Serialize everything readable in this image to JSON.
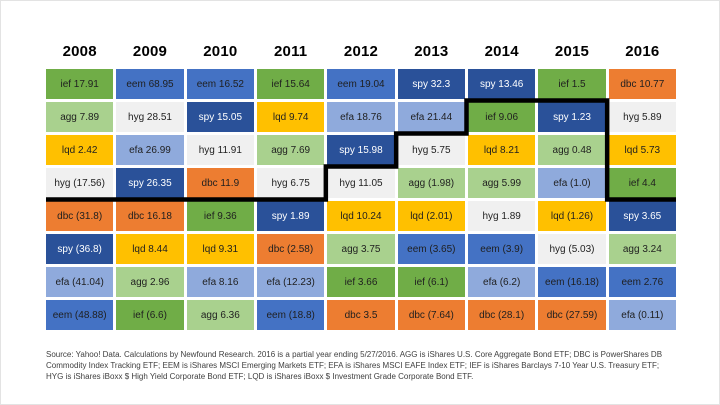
{
  "footnote": {
    "text": "Source: Yahoo! Data. Calculations by Newfound Research.  2016 is a partial year ending 5/27/2016.  AGG is iShares U.S. Core Aggregate Bond ETF; DBC is PowerShares DB Commodity Index Tracking ETF; EEM is iShares MSCI Emerging Markets ETF; EFA is iShares MSCI EAFE Index ETF; IEF is iShares Barclays 7-10 Year U.S. Treasury ETF; HYG is iShares iBoxx $ High Yield Corporate Bond ETF; LQD is iShares iBoxx $ Investment Grade Corporate Bond ETF."
  },
  "chart_data": {
    "type": "table",
    "subtype": "periodic-table-of-returns-heatmap",
    "years": [
      "2008",
      "2009",
      "2010",
      "2011",
      "2012",
      "2013",
      "2014",
      "2015",
      "2016"
    ],
    "ticker_colors": {
      "spy": "#2a5199",
      "eem": "#4472c4",
      "efa": "#8faadc",
      "ief": "#70ad47",
      "agg": "#a9d18e",
      "lqd": "#ffc000",
      "hyg": "#f0f0f0",
      "dbc": "#ed7d31"
    },
    "ticker_text_colors": {
      "spy": "#ffffff"
    },
    "default_text_color": "#1f1f1f",
    "overlay_line": {
      "color": "#000000",
      "width": 4.5,
      "comment": "step line: below row boundary N after given column count",
      "steps": [
        {
          "row_boundary": 4,
          "through_col": 4
        },
        {
          "row_boundary": 3,
          "through_col": 5
        },
        {
          "row_boundary": 2,
          "through_col": 6
        },
        {
          "row_boundary": 1,
          "through_col": 8
        },
        {
          "row_boundary": 4,
          "through_col": 9
        }
      ]
    },
    "columns": [
      {
        "year": "2008",
        "ranked": [
          {
            "ticker": "ief",
            "text": "ief 17.91",
            "value": 17.91
          },
          {
            "ticker": "agg",
            "text": "agg 7.89",
            "value": 7.89
          },
          {
            "ticker": "lqd",
            "text": "lqd 2.42",
            "value": 2.42
          },
          {
            "ticker": "hyg",
            "text": "hyg (17.56)",
            "value": -17.56
          },
          {
            "ticker": "dbc",
            "text": "dbc (31.8)",
            "value": -31.8
          },
          {
            "ticker": "spy",
            "text": "spy (36.8)",
            "value": -36.8
          },
          {
            "ticker": "efa",
            "text": "efa (41.04)",
            "value": -41.04
          },
          {
            "ticker": "eem",
            "text": "eem (48.88)",
            "value": -48.88
          }
        ]
      },
      {
        "year": "2009",
        "ranked": [
          {
            "ticker": "eem",
            "text": "eem 68.95",
            "value": 68.95
          },
          {
            "ticker": "hyg",
            "text": "hyg 28.51",
            "value": 28.51
          },
          {
            "ticker": "efa",
            "text": "efa 26.99",
            "value": 26.99
          },
          {
            "ticker": "spy",
            "text": "spy 26.35",
            "value": 26.35
          },
          {
            "ticker": "dbc",
            "text": "dbc 16.18",
            "value": 16.18
          },
          {
            "ticker": "lqd",
            "text": "lqd 8.44",
            "value": 8.44
          },
          {
            "ticker": "agg",
            "text": "agg 2.96",
            "value": 2.96
          },
          {
            "ticker": "ief",
            "text": "ief (6.6)",
            "value": -6.6
          }
        ]
      },
      {
        "year": "2010",
        "ranked": [
          {
            "ticker": "eem",
            "text": "eem 16.52",
            "value": 16.52
          },
          {
            "ticker": "spy",
            "text": "spy 15.05",
            "value": 15.05
          },
          {
            "ticker": "hyg",
            "text": "hyg 11.91",
            "value": 11.91
          },
          {
            "ticker": "dbc",
            "text": "dbc 11.9",
            "value": 11.9
          },
          {
            "ticker": "ief",
            "text": "ief 9.36",
            "value": 9.36
          },
          {
            "ticker": "lqd",
            "text": "lqd 9.31",
            "value": 9.31
          },
          {
            "ticker": "efa",
            "text": "efa 8.16",
            "value": 8.16
          },
          {
            "ticker": "agg",
            "text": "agg 6.36",
            "value": 6.36
          }
        ]
      },
      {
        "year": "2011",
        "ranked": [
          {
            "ticker": "ief",
            "text": "ief 15.64",
            "value": 15.64
          },
          {
            "ticker": "lqd",
            "text": "lqd 9.74",
            "value": 9.74
          },
          {
            "ticker": "agg",
            "text": "agg 7.69",
            "value": 7.69
          },
          {
            "ticker": "hyg",
            "text": "hyg 6.75",
            "value": 6.75
          },
          {
            "ticker": "spy",
            "text": "spy 1.89",
            "value": 1.89
          },
          {
            "ticker": "dbc",
            "text": "dbc (2.58)",
            "value": -2.58
          },
          {
            "ticker": "efa",
            "text": "efa (12.23)",
            "value": -12.23
          },
          {
            "ticker": "eem",
            "text": "eem (18.8)",
            "value": -18.8
          }
        ]
      },
      {
        "year": "2012",
        "ranked": [
          {
            "ticker": "eem",
            "text": "eem 19.04",
            "value": 19.04
          },
          {
            "ticker": "efa",
            "text": "efa 18.76",
            "value": 18.76
          },
          {
            "ticker": "spy",
            "text": "spy 15.98",
            "value": 15.98
          },
          {
            "ticker": "hyg",
            "text": "hyg 11.05",
            "value": 11.05
          },
          {
            "ticker": "lqd",
            "text": "lqd 10.24",
            "value": 10.24
          },
          {
            "ticker": "agg",
            "text": "agg 3.75",
            "value": 3.75
          },
          {
            "ticker": "ief",
            "text": "ief 3.66",
            "value": 3.66
          },
          {
            "ticker": "dbc",
            "text": "dbc 3.5",
            "value": 3.5
          }
        ]
      },
      {
        "year": "2013",
        "ranked": [
          {
            "ticker": "spy",
            "text": "spy 32.3",
            "value": 32.3
          },
          {
            "ticker": "efa",
            "text": "efa 21.44",
            "value": 21.44
          },
          {
            "ticker": "hyg",
            "text": "hyg 5.75",
            "value": 5.75
          },
          {
            "ticker": "agg",
            "text": "agg (1.98)",
            "value": -1.98
          },
          {
            "ticker": "lqd",
            "text": "lqd (2.01)",
            "value": -2.01
          },
          {
            "ticker": "eem",
            "text": "eem (3.65)",
            "value": -3.65
          },
          {
            "ticker": "ief",
            "text": "ief (6.1)",
            "value": -6.1
          },
          {
            "ticker": "dbc",
            "text": "dbc (7.64)",
            "value": -7.64
          }
        ]
      },
      {
        "year": "2014",
        "ranked": [
          {
            "ticker": "spy",
            "text": "spy 13.46",
            "value": 13.46
          },
          {
            "ticker": "ief",
            "text": "ief 9.06",
            "value": 9.06
          },
          {
            "ticker": "lqd",
            "text": "lqd 8.21",
            "value": 8.21
          },
          {
            "ticker": "agg",
            "text": "agg 5.99",
            "value": 5.99
          },
          {
            "ticker": "hyg",
            "text": "hyg 1.89",
            "value": 1.89
          },
          {
            "ticker": "eem",
            "text": "eem (3.9)",
            "value": -3.9
          },
          {
            "ticker": "efa",
            "text": "efa (6.2)",
            "value": -6.2
          },
          {
            "ticker": "dbc",
            "text": "dbc (28.1)",
            "value": -28.1
          }
        ]
      },
      {
        "year": "2015",
        "ranked": [
          {
            "ticker": "ief",
            "text": "ief 1.5",
            "value": 1.5
          },
          {
            "ticker": "spy",
            "text": "spy 1.23",
            "value": 1.23
          },
          {
            "ticker": "agg",
            "text": "agg 0.48",
            "value": 0.48
          },
          {
            "ticker": "efa",
            "text": "efa (1.0)",
            "value": -1.0
          },
          {
            "ticker": "lqd",
            "text": "lqd (1.26)",
            "value": -1.26
          },
          {
            "ticker": "hyg",
            "text": "hyg (5.03)",
            "value": -5.03
          },
          {
            "ticker": "eem",
            "text": "eem (16.18)",
            "value": -16.18
          },
          {
            "ticker": "dbc",
            "text": "dbc (27.59)",
            "value": -27.59
          }
        ]
      },
      {
        "year": "2016",
        "ranked": [
          {
            "ticker": "dbc",
            "text": "dbc 10.77",
            "value": 10.77
          },
          {
            "ticker": "hyg",
            "text": "hyg 5.89",
            "value": 5.89
          },
          {
            "ticker": "lqd",
            "text": "lqd 5.73",
            "value": 5.73
          },
          {
            "ticker": "ief",
            "text": "ief 4.4",
            "value": 4.4
          },
          {
            "ticker": "spy",
            "text": "spy 3.65",
            "value": 3.65
          },
          {
            "ticker": "agg",
            "text": "agg 3.24",
            "value": 3.24
          },
          {
            "ticker": "eem",
            "text": "eem 2.76",
            "value": 2.76
          },
          {
            "ticker": "efa",
            "text": "efa (0.11)",
            "value": -0.11
          }
        ]
      }
    ]
  }
}
